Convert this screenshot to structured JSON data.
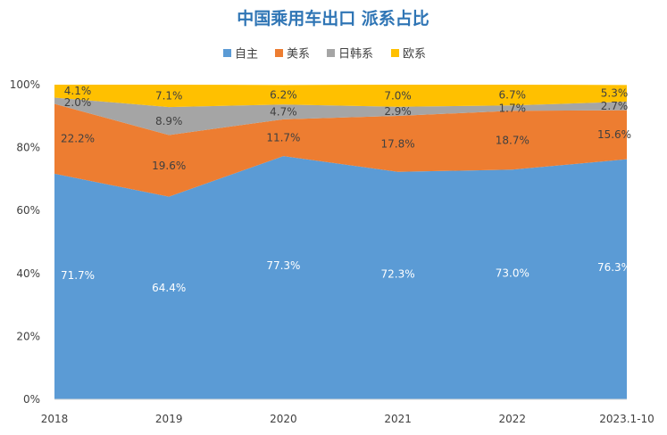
{
  "chart_data": {
    "type": "area",
    "stacked": true,
    "title": "中国乘用车出口 派系占比",
    "xlabel": "",
    "ylabel": "",
    "categories": [
      "2018",
      "2019",
      "2020",
      "2021",
      "2022",
      "2023.1-10"
    ],
    "ylim": [
      0,
      100
    ],
    "y_ticks": [
      "0%",
      "20%",
      "40%",
      "60%",
      "80%",
      "100%"
    ],
    "legend_position": "top",
    "grid": false,
    "series": [
      {
        "name": "自主",
        "color": "#5b9bd5",
        "label_color": "#ffffff",
        "values": [
          71.7,
          64.4,
          77.3,
          72.3,
          73.0,
          76.3
        ],
        "labels": [
          "71.7%",
          "64.4%",
          "77.3%",
          "72.3%",
          "73.0%",
          "76.3%"
        ]
      },
      {
        "name": "美系",
        "color": "#ed7d31",
        "label_color": "#404040",
        "values": [
          22.2,
          19.6,
          11.7,
          17.8,
          18.7,
          15.6
        ],
        "labels": [
          "22.2%",
          "19.6%",
          "11.7%",
          "17.8%",
          "18.7%",
          "15.6%"
        ]
      },
      {
        "name": "日韩系",
        "color": "#a5a5a5",
        "label_color": "#404040",
        "values": [
          2.0,
          8.9,
          4.7,
          2.9,
          1.7,
          2.7
        ],
        "labels": [
          "2.0%",
          "8.9%",
          "4.7%",
          "2.9%",
          "1.7%",
          "2.7%"
        ]
      },
      {
        "name": "欧系",
        "color": "#ffc000",
        "label_color": "#404040",
        "values": [
          4.1,
          7.1,
          6.2,
          7.0,
          6.7,
          5.3
        ],
        "labels": [
          "4.1%",
          "7.1%",
          "6.2%",
          "7.0%",
          "6.7%",
          "5.3%"
        ]
      }
    ]
  }
}
